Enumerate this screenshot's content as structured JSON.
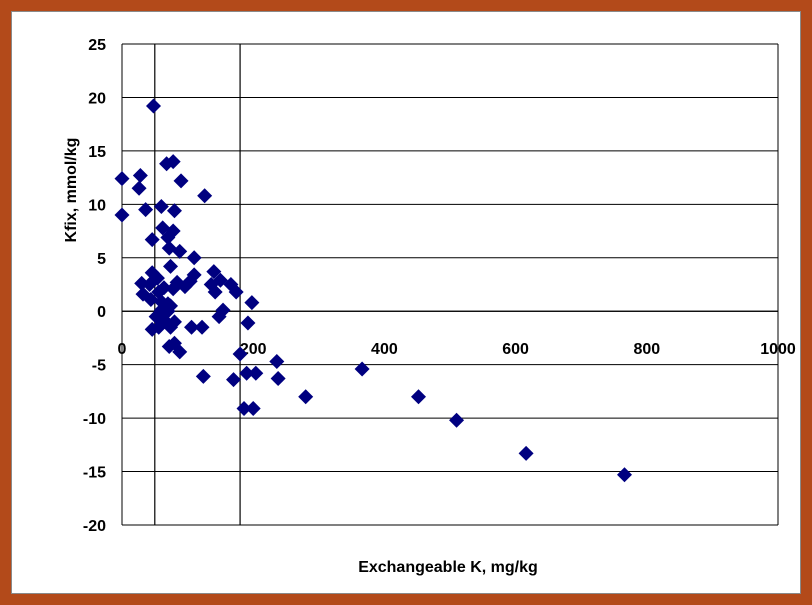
{
  "chart_data": {
    "type": "scatter",
    "title": "",
    "xlabel": "Exchangeable K, mg/kg",
    "ylabel": "Kfix, mmol/kg",
    "xlim": [
      0,
      1000
    ],
    "ylim": [
      -20,
      25
    ],
    "x_ticks": [
      "0",
      "200",
      "400",
      "600",
      "800",
      "1000"
    ],
    "y_ticks": [
      "25",
      "20",
      "15",
      "10",
      "5",
      "0",
      "-5",
      "-10",
      "-15",
      "-20"
    ],
    "grid": "horizontal",
    "reference_lines_x": [
      50,
      180
    ],
    "marker_color": "#000080",
    "marker": "diamond",
    "points": [
      [
        48,
        19.2
      ],
      [
        0,
        12.4
      ],
      [
        28,
        12.7
      ],
      [
        26,
        11.5
      ],
      [
        0,
        9.0
      ],
      [
        68,
        13.8
      ],
      [
        78,
        14.0
      ],
      [
        90,
        12.2
      ],
      [
        126,
        10.8
      ],
      [
        36,
        9.5
      ],
      [
        60,
        9.8
      ],
      [
        80,
        9.4
      ],
      [
        46,
        6.7
      ],
      [
        62,
        7.8
      ],
      [
        70,
        6.9
      ],
      [
        78,
        7.5
      ],
      [
        72,
        5.9
      ],
      [
        88,
        5.6
      ],
      [
        110,
        5.0
      ],
      [
        46,
        3.6
      ],
      [
        54,
        3.1
      ],
      [
        74,
        4.2
      ],
      [
        140,
        3.7
      ],
      [
        110,
        3.4
      ],
      [
        30,
        2.6
      ],
      [
        42,
        2.5
      ],
      [
        32,
        1.6
      ],
      [
        44,
        1.1
      ],
      [
        56,
        1.8
      ],
      [
        64,
        2.2
      ],
      [
        78,
        2.1
      ],
      [
        84,
        2.7
      ],
      [
        96,
        2.3
      ],
      [
        104,
        2.8
      ],
      [
        136,
        2.5
      ],
      [
        150,
        2.9
      ],
      [
        166,
        2.5
      ],
      [
        174,
        1.8
      ],
      [
        142,
        1.8
      ],
      [
        60,
        0.9
      ],
      [
        70,
        0.7
      ],
      [
        60,
        0.1
      ],
      [
        70,
        0.0
      ],
      [
        74,
        0.5
      ],
      [
        52,
        -0.5
      ],
      [
        64,
        -0.8
      ],
      [
        80,
        -1.0
      ],
      [
        154,
        0.1
      ],
      [
        148,
        -0.5
      ],
      [
        198,
        0.8
      ],
      [
        192,
        -1.1
      ],
      [
        46,
        -1.7
      ],
      [
        56,
        -1.5
      ],
      [
        74,
        -1.5
      ],
      [
        106,
        -1.5
      ],
      [
        122,
        -1.5
      ],
      [
        72,
        -3.3
      ],
      [
        80,
        -3.0
      ],
      [
        88,
        -3.8
      ],
      [
        180,
        -4.0
      ],
      [
        236,
        -4.7
      ],
      [
        124,
        -6.1
      ],
      [
        170,
        -6.4
      ],
      [
        190,
        -5.8
      ],
      [
        204,
        -5.8
      ],
      [
        238,
        -6.3
      ],
      [
        280,
        -8.0
      ],
      [
        186,
        -9.1
      ],
      [
        200,
        -9.1
      ],
      [
        366,
        -5.4
      ],
      [
        452,
        -8.0
      ],
      [
        510,
        -10.2
      ],
      [
        616,
        -13.3
      ],
      [
        766,
        -15.3
      ]
    ]
  }
}
